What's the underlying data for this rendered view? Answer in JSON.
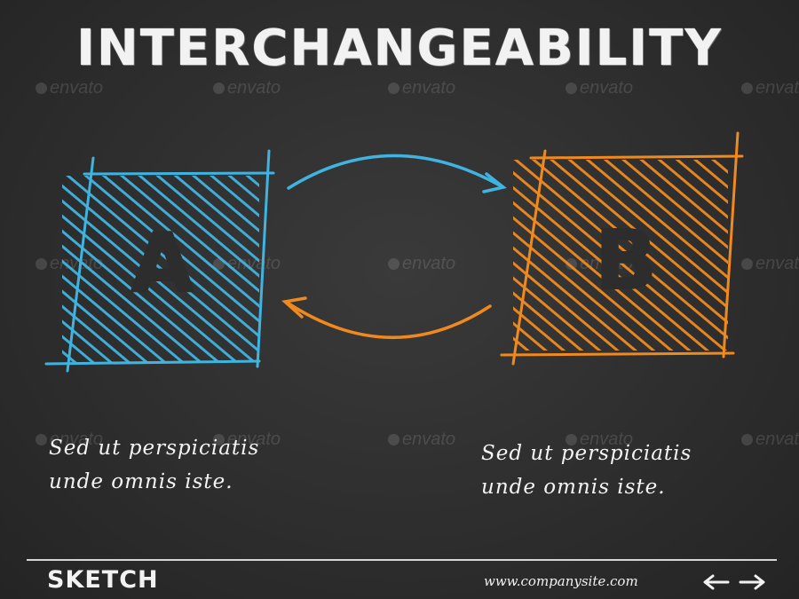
{
  "slide": {
    "title": "INTERCHANGEABILITY",
    "box_a": {
      "letter": "A",
      "color": "#3fb4e0"
    },
    "box_b": {
      "letter": "B",
      "color": "#f08a1e"
    },
    "caption_a": [
      "Sed ut perspiciatis",
      "unde omnis iste."
    ],
    "caption_b": [
      "Sed ut perspiciatis",
      "unde omnis iste."
    ],
    "arrow_top_color": "#3fb4e0",
    "arrow_bottom_color": "#f08a1e"
  },
  "footer": {
    "brand": "SKETCH",
    "site": "www.companysite.com",
    "prev_icon": "arrow-left-icon",
    "next_icon": "arrow-right-icon"
  },
  "watermark": {
    "text": "envato"
  }
}
